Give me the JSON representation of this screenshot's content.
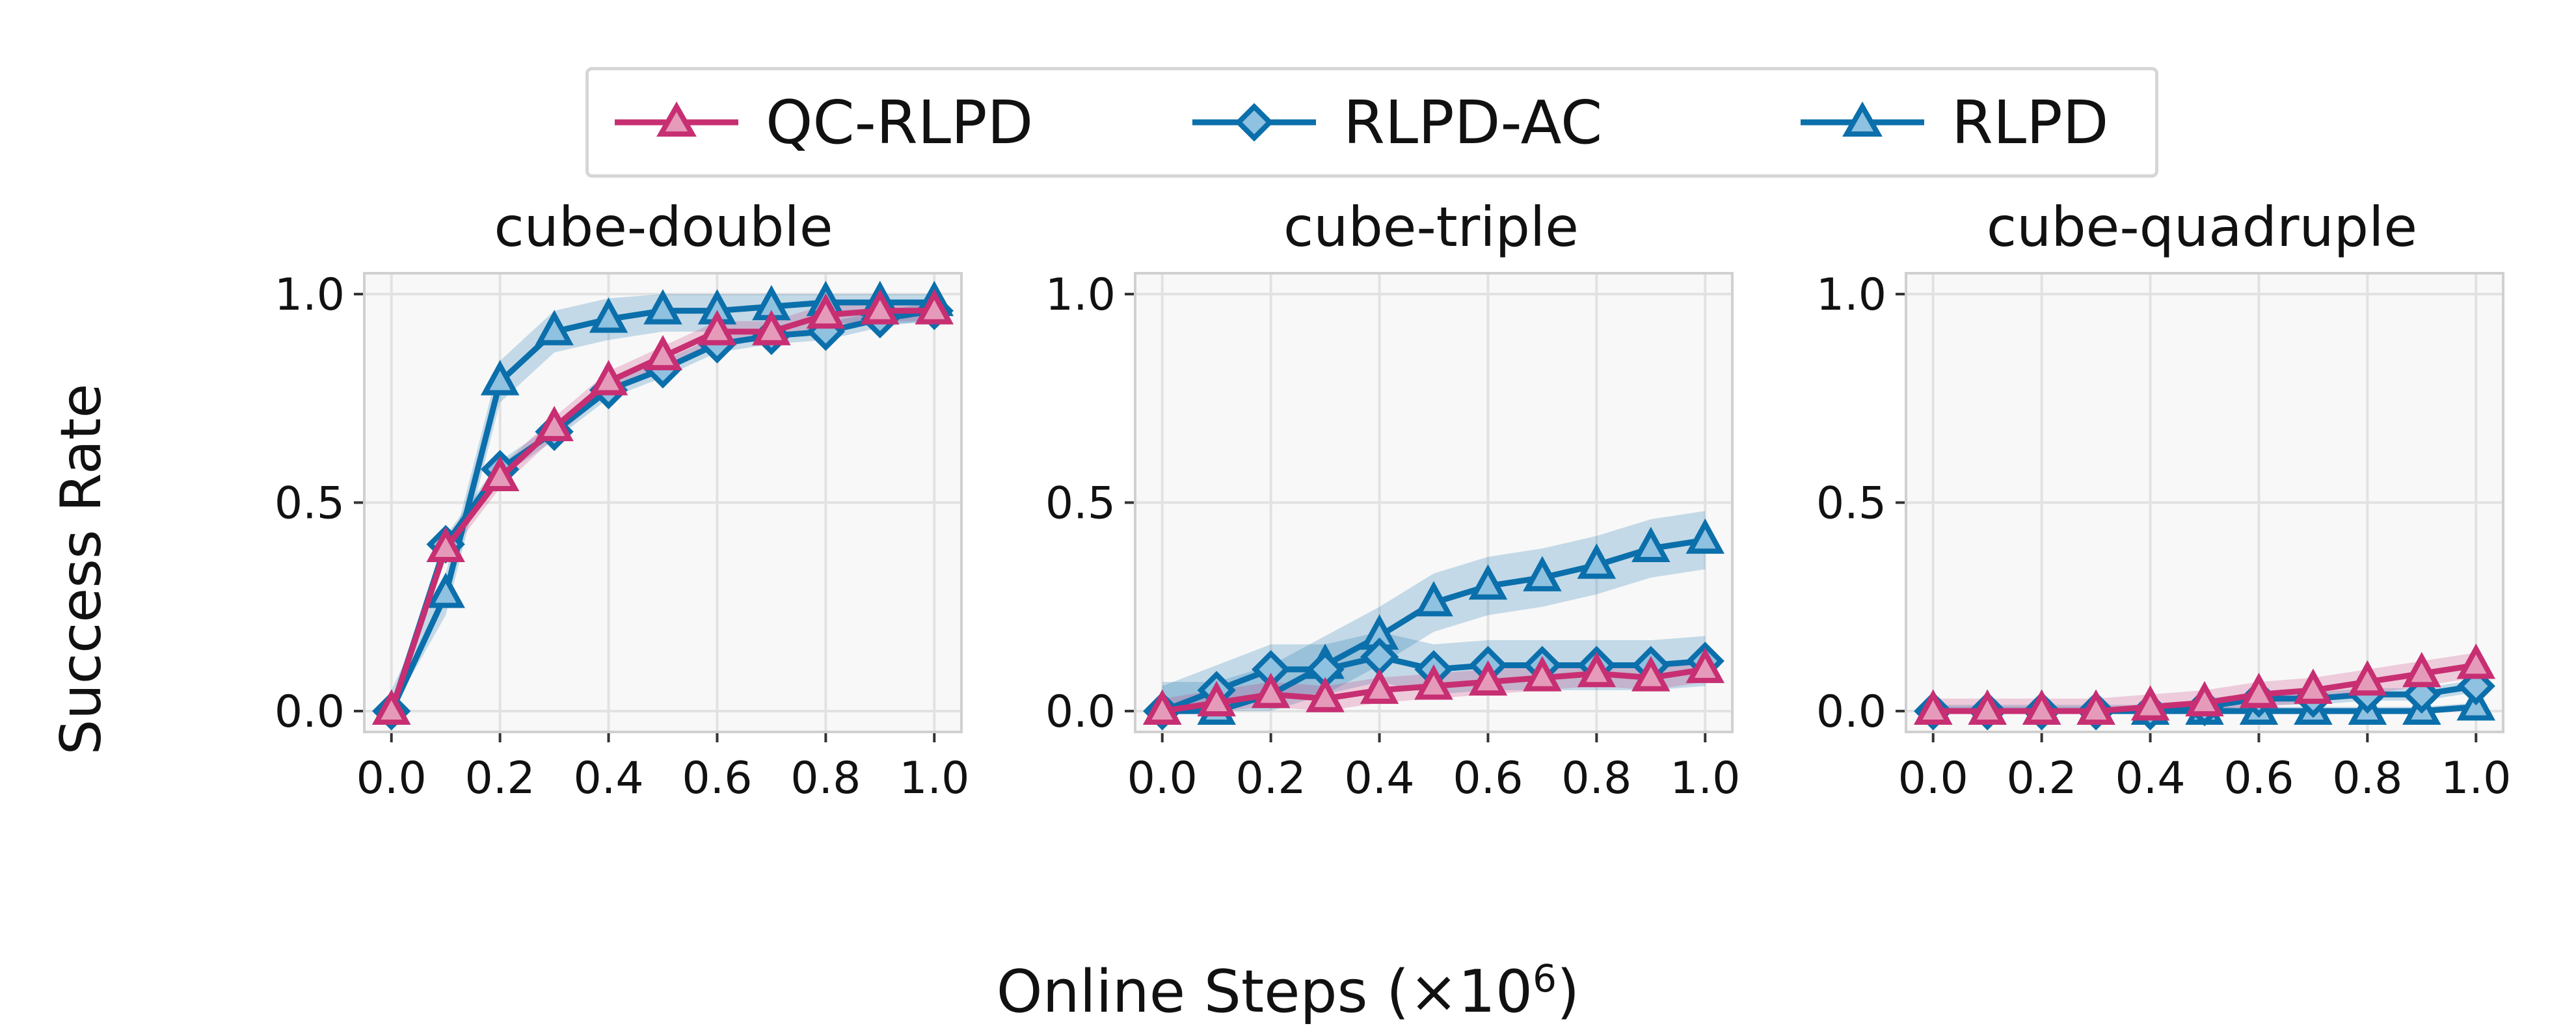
{
  "figure": {
    "ylabel": "Success Rate",
    "xlabel_prefix": "Online Steps (×10",
    "xlabel_exp": "6",
    "xlabel_suffix": ")"
  },
  "legend": [
    {
      "name": "QC-RLPD",
      "color": "#c72f72",
      "marker": "triangle-up"
    },
    {
      "name": "RLPD-AC",
      "color": "#0b6fab",
      "marker": "diamond"
    },
    {
      "name": "RLPD",
      "color": "#0b6fab",
      "marker": "triangle-up"
    }
  ],
  "chart_data": [
    {
      "type": "line",
      "title": "cube-double",
      "x": [
        0.0,
        0.1,
        0.2,
        0.3,
        0.4,
        0.5,
        0.6,
        0.7,
        0.8,
        0.9,
        1.0
      ],
      "xlim": [
        -0.05,
        1.05
      ],
      "ylim": [
        -0.05,
        1.05
      ],
      "xticks": [
        "0.0",
        "0.2",
        "0.4",
        "0.6",
        "0.8",
        "1.0"
      ],
      "yticks": [
        "0.0",
        "0.5",
        "1.0"
      ],
      "grid": true,
      "series": [
        {
          "name": "QC-RLPD",
          "values": [
            0.0,
            0.39,
            0.56,
            0.68,
            0.79,
            0.85,
            0.91,
            0.91,
            0.95,
            0.96,
            0.96
          ],
          "band": 0.025
        },
        {
          "name": "RLPD-AC",
          "values": [
            0.0,
            0.4,
            0.58,
            0.67,
            0.77,
            0.82,
            0.88,
            0.9,
            0.91,
            0.94,
            0.96
          ],
          "band": 0.02
        },
        {
          "name": "RLPD",
          "values": [
            0.0,
            0.28,
            0.79,
            0.91,
            0.94,
            0.96,
            0.96,
            0.97,
            0.98,
            0.98,
            0.98
          ],
          "band": 0.05
        }
      ]
    },
    {
      "type": "line",
      "title": "cube-triple",
      "x": [
        0.0,
        0.1,
        0.2,
        0.3,
        0.4,
        0.5,
        0.6,
        0.7,
        0.8,
        0.9,
        1.0
      ],
      "xlim": [
        -0.05,
        1.05
      ],
      "ylim": [
        -0.05,
        1.05
      ],
      "xticks": [
        "0.0",
        "0.2",
        "0.4",
        "0.6",
        "0.8",
        "1.0"
      ],
      "yticks": [
        "0.0",
        "0.5",
        "1.0"
      ],
      "grid": true,
      "series": [
        {
          "name": "QC-RLPD",
          "values": [
            0.0,
            0.02,
            0.04,
            0.03,
            0.05,
            0.06,
            0.07,
            0.08,
            0.09,
            0.08,
            0.1
          ],
          "band": 0.03
        },
        {
          "name": "RLPD-AC",
          "values": [
            0.0,
            0.05,
            0.1,
            0.1,
            0.13,
            0.1,
            0.11,
            0.11,
            0.11,
            0.11,
            0.12
          ],
          "band": 0.06
        },
        {
          "name": "RLPD",
          "values": [
            0.0,
            0.0,
            0.04,
            0.11,
            0.18,
            0.26,
            0.3,
            0.32,
            0.35,
            0.39,
            0.41
          ],
          "band": 0.07
        }
      ]
    },
    {
      "type": "line",
      "title": "cube-quadruple",
      "x": [
        0.0,
        0.1,
        0.2,
        0.3,
        0.4,
        0.5,
        0.6,
        0.7,
        0.8,
        0.9,
        1.0
      ],
      "xlim": [
        -0.05,
        1.05
      ],
      "ylim": [
        -0.05,
        1.05
      ],
      "xticks": [
        "0.0",
        "0.2",
        "0.4",
        "0.6",
        "0.8",
        "1.0"
      ],
      "yticks": [
        "0.0",
        "0.5",
        "1.0"
      ],
      "grid": true,
      "series": [
        {
          "name": "QC-RLPD",
          "values": [
            0.0,
            0.0,
            0.0,
            0.0,
            0.01,
            0.02,
            0.04,
            0.05,
            0.07,
            0.09,
            0.11
          ],
          "band": 0.03
        },
        {
          "name": "RLPD-AC",
          "values": [
            0.0,
            0.0,
            0.0,
            0.0,
            0.0,
            0.01,
            0.03,
            0.03,
            0.04,
            0.04,
            0.06
          ],
          "band": 0.015
        },
        {
          "name": "RLPD",
          "values": [
            0.0,
            0.0,
            0.0,
            0.0,
            0.0,
            0.0,
            0.0,
            0.0,
            0.0,
            0.0,
            0.01
          ],
          "band": 0.01
        }
      ]
    }
  ]
}
